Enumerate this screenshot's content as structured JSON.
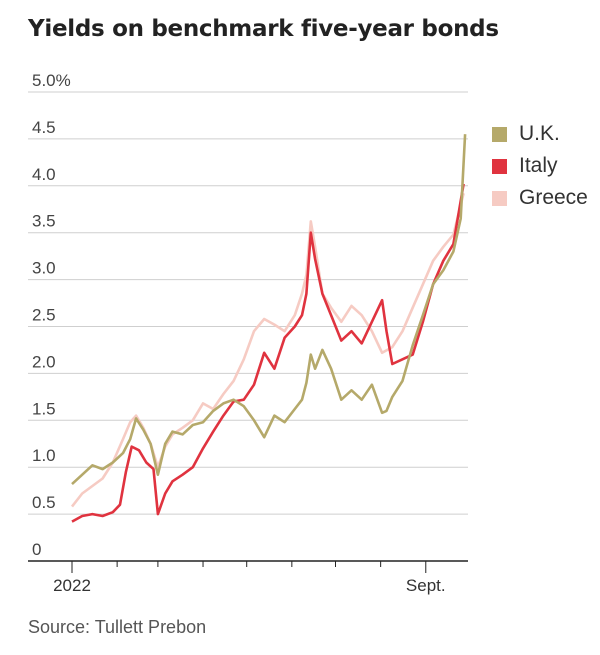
{
  "title": "Yields on benchmark five-year bonds",
  "source": "Source: Tullett Prebon",
  "colors": {
    "UK": "#b5a96a",
    "Italy": "#e0333f",
    "Greece": "#f6cbc3"
  },
  "chart_data": {
    "type": "line",
    "title": "Yields on benchmark five-year bonds",
    "xlabel": "",
    "ylabel": "",
    "x_range": [
      "2022-01-01",
      "2022-09-30"
    ],
    "x_tick_labels": [
      {
        "date": "2022-01-01",
        "label": "2022"
      },
      {
        "date": "2022-09-01",
        "label": "Sept."
      }
    ],
    "y_ticks": [
      0,
      0.5,
      1.0,
      1.5,
      2.0,
      2.5,
      3.0,
      3.5,
      4.0,
      4.5,
      5.0
    ],
    "y_tick_labels": [
      "0",
      "0.5",
      "1.0",
      "1.5",
      "2.0",
      "2.5",
      "3.0",
      "3.5",
      "4.0",
      "4.5",
      "5.0%"
    ],
    "ylim": [
      0,
      5.0
    ],
    "grid": true,
    "legend": "right",
    "series": [
      {
        "name": "Greece",
        "color": "#f6cbc3",
        "points": [
          [
            "2022-01-01",
            0.58
          ],
          [
            "2022-01-08",
            0.72
          ],
          [
            "2022-01-15",
            0.8
          ],
          [
            "2022-01-22",
            0.88
          ],
          [
            "2022-01-29",
            1.05
          ],
          [
            "2022-02-05",
            1.3
          ],
          [
            "2022-02-10",
            1.48
          ],
          [
            "2022-02-14",
            1.55
          ],
          [
            "2022-02-19",
            1.42
          ],
          [
            "2022-02-24",
            1.25
          ],
          [
            "2022-03-01",
            1.0
          ],
          [
            "2022-03-06",
            1.22
          ],
          [
            "2022-03-11",
            1.35
          ],
          [
            "2022-03-18",
            1.42
          ],
          [
            "2022-03-25",
            1.5
          ],
          [
            "2022-04-01",
            1.68
          ],
          [
            "2022-04-08",
            1.62
          ],
          [
            "2022-04-15",
            1.78
          ],
          [
            "2022-04-22",
            1.92
          ],
          [
            "2022-04-29",
            2.15
          ],
          [
            "2022-05-06",
            2.45
          ],
          [
            "2022-05-13",
            2.58
          ],
          [
            "2022-05-20",
            2.52
          ],
          [
            "2022-05-27",
            2.45
          ],
          [
            "2022-06-03",
            2.62
          ],
          [
            "2022-06-08",
            2.85
          ],
          [
            "2022-06-11",
            3.05
          ],
          [
            "2022-06-14",
            3.62
          ],
          [
            "2022-06-17",
            3.35
          ],
          [
            "2022-06-22",
            2.85
          ],
          [
            "2022-06-28",
            2.7
          ],
          [
            "2022-07-05",
            2.55
          ],
          [
            "2022-07-12",
            2.72
          ],
          [
            "2022-07-19",
            2.62
          ],
          [
            "2022-07-26",
            2.45
          ],
          [
            "2022-08-02",
            2.22
          ],
          [
            "2022-08-09",
            2.28
          ],
          [
            "2022-08-16",
            2.45
          ],
          [
            "2022-08-23",
            2.7
          ],
          [
            "2022-08-30",
            2.95
          ],
          [
            "2022-09-06",
            3.2
          ],
          [
            "2022-09-13",
            3.35
          ],
          [
            "2022-09-20",
            3.48
          ],
          [
            "2022-09-27",
            3.92
          ]
        ]
      },
      {
        "name": "Italy",
        "color": "#e0333f",
        "points": [
          [
            "2022-01-01",
            0.42
          ],
          [
            "2022-01-08",
            0.48
          ],
          [
            "2022-01-15",
            0.5
          ],
          [
            "2022-01-22",
            0.48
          ],
          [
            "2022-01-29",
            0.52
          ],
          [
            "2022-02-03",
            0.6
          ],
          [
            "2022-02-07",
            0.95
          ],
          [
            "2022-02-11",
            1.22
          ],
          [
            "2022-02-16",
            1.18
          ],
          [
            "2022-02-21",
            1.05
          ],
          [
            "2022-02-26",
            0.98
          ],
          [
            "2022-03-01",
            0.5
          ],
          [
            "2022-03-06",
            0.72
          ],
          [
            "2022-03-11",
            0.85
          ],
          [
            "2022-03-18",
            0.92
          ],
          [
            "2022-03-25",
            1.0
          ],
          [
            "2022-04-01",
            1.2
          ],
          [
            "2022-04-08",
            1.38
          ],
          [
            "2022-04-15",
            1.55
          ],
          [
            "2022-04-22",
            1.7
          ],
          [
            "2022-04-29",
            1.72
          ],
          [
            "2022-05-06",
            1.88
          ],
          [
            "2022-05-13",
            2.22
          ],
          [
            "2022-05-20",
            2.05
          ],
          [
            "2022-05-27",
            2.38
          ],
          [
            "2022-06-03",
            2.5
          ],
          [
            "2022-06-08",
            2.62
          ],
          [
            "2022-06-11",
            2.85
          ],
          [
            "2022-06-14",
            3.5
          ],
          [
            "2022-06-17",
            3.22
          ],
          [
            "2022-06-22",
            2.85
          ],
          [
            "2022-06-28",
            2.62
          ],
          [
            "2022-07-05",
            2.35
          ],
          [
            "2022-07-12",
            2.45
          ],
          [
            "2022-07-19",
            2.32
          ],
          [
            "2022-07-26",
            2.55
          ],
          [
            "2022-08-02",
            2.78
          ],
          [
            "2022-08-05",
            2.45
          ],
          [
            "2022-08-09",
            2.1
          ],
          [
            "2022-08-16",
            2.15
          ],
          [
            "2022-08-23",
            2.2
          ],
          [
            "2022-08-30",
            2.55
          ],
          [
            "2022-09-06",
            2.95
          ],
          [
            "2022-09-13",
            3.2
          ],
          [
            "2022-09-20",
            3.38
          ],
          [
            "2022-09-27",
            4.02
          ]
        ]
      },
      {
        "name": "U.K.",
        "color": "#b5a96a",
        "points": [
          [
            "2022-01-01",
            0.82
          ],
          [
            "2022-01-08",
            0.92
          ],
          [
            "2022-01-15",
            1.02
          ],
          [
            "2022-01-22",
            0.98
          ],
          [
            "2022-01-29",
            1.05
          ],
          [
            "2022-02-05",
            1.15
          ],
          [
            "2022-02-10",
            1.3
          ],
          [
            "2022-02-14",
            1.52
          ],
          [
            "2022-02-19",
            1.4
          ],
          [
            "2022-02-24",
            1.25
          ],
          [
            "2022-03-01",
            0.92
          ],
          [
            "2022-03-06",
            1.25
          ],
          [
            "2022-03-11",
            1.38
          ],
          [
            "2022-03-18",
            1.35
          ],
          [
            "2022-03-25",
            1.45
          ],
          [
            "2022-04-01",
            1.48
          ],
          [
            "2022-04-08",
            1.6
          ],
          [
            "2022-04-15",
            1.68
          ],
          [
            "2022-04-22",
            1.72
          ],
          [
            "2022-04-29",
            1.65
          ],
          [
            "2022-05-06",
            1.5
          ],
          [
            "2022-05-13",
            1.32
          ],
          [
            "2022-05-20",
            1.55
          ],
          [
            "2022-05-27",
            1.48
          ],
          [
            "2022-06-03",
            1.62
          ],
          [
            "2022-06-08",
            1.72
          ],
          [
            "2022-06-11",
            1.9
          ],
          [
            "2022-06-14",
            2.2
          ],
          [
            "2022-06-17",
            2.05
          ],
          [
            "2022-06-22",
            2.25
          ],
          [
            "2022-06-28",
            2.05
          ],
          [
            "2022-07-05",
            1.72
          ],
          [
            "2022-07-12",
            1.82
          ],
          [
            "2022-07-19",
            1.72
          ],
          [
            "2022-07-26",
            1.88
          ],
          [
            "2022-08-02",
            1.58
          ],
          [
            "2022-08-05",
            1.6
          ],
          [
            "2022-08-09",
            1.75
          ],
          [
            "2022-08-16",
            1.92
          ],
          [
            "2022-08-23",
            2.3
          ],
          [
            "2022-08-30",
            2.62
          ],
          [
            "2022-09-06",
            2.95
          ],
          [
            "2022-09-13",
            3.1
          ],
          [
            "2022-09-20",
            3.3
          ],
          [
            "2022-09-25",
            3.65
          ],
          [
            "2022-09-28",
            4.55
          ]
        ]
      }
    ]
  }
}
